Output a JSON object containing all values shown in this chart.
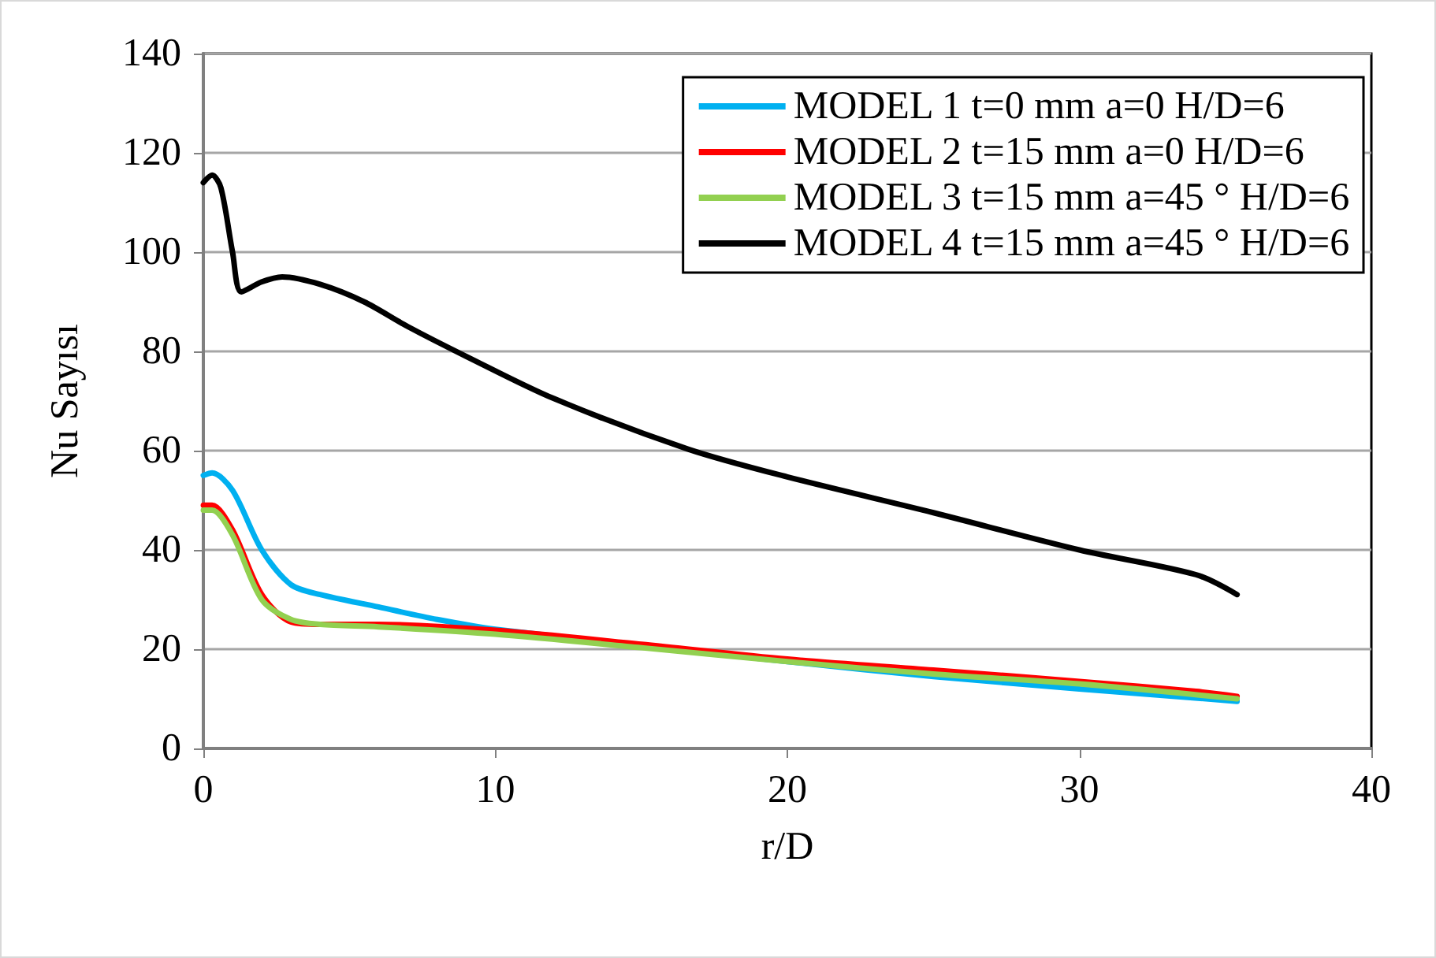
{
  "chart_data": {
    "type": "line",
    "xlabel": "r/D",
    "ylabel": "Nu Sayısı",
    "xlim": [
      0,
      40
    ],
    "xticks": [
      0,
      10,
      20,
      30,
      40
    ],
    "ylim": [
      0,
      140
    ],
    "yticks": [
      0,
      20,
      40,
      60,
      80,
      100,
      120,
      140
    ],
    "grid": "y",
    "legend": "top right",
    "marker": "none",
    "line_style": "solid",
    "series": [
      {
        "name": "MODEL 1 t=0 mm a=0 H/D=6",
        "color": "#00b0f0",
        "x": [
          0,
          0.3,
          1,
          2,
          3,
          4,
          6,
          8,
          10,
          20,
          25,
          30,
          35.4
        ],
        "values": [
          55,
          55.5,
          52,
          40,
          33,
          31,
          28.5,
          26,
          24,
          17.5,
          14.5,
          12,
          9.5
        ]
      },
      {
        "name": "MODEL 2 t=15 mm a=0 H/D=6",
        "color": "#ff0000",
        "x": [
          0,
          0.3,
          1,
          2,
          3,
          4,
          6,
          10,
          15,
          20,
          25,
          30,
          34,
          35.4
        ],
        "values": [
          49,
          49,
          44,
          31,
          25.5,
          25,
          25,
          23.8,
          21,
          18,
          15.8,
          13.5,
          11.5,
          10.5
        ]
      },
      {
        "name": "MODEL 3 t=15 mm a=45 ° H/D=6",
        "color": "#92d050",
        "x": [
          0,
          0.3,
          1,
          2,
          3,
          4,
          6,
          10,
          15,
          20,
          25,
          30,
          35.4
        ],
        "values": [
          48,
          48,
          43,
          30,
          26,
          25,
          24.5,
          23,
          20.3,
          17.5,
          15,
          13,
          10
        ]
      },
      {
        "name": "MODEL 4 t=15 mm a=45 ° H/D=6",
        "color": "#000000",
        "x": [
          0,
          0.3,
          0.6,
          1,
          1.3,
          2,
          2.7,
          4,
          5.5,
          7,
          9,
          12,
          16.6,
          20,
          25,
          30,
          34,
          35.4
        ],
        "values": [
          114,
          115.5,
          113,
          100,
          92,
          94,
          95,
          93.5,
          90,
          85,
          79,
          70.5,
          60.3,
          54.7,
          47.5,
          40,
          35,
          31
        ]
      }
    ]
  }
}
